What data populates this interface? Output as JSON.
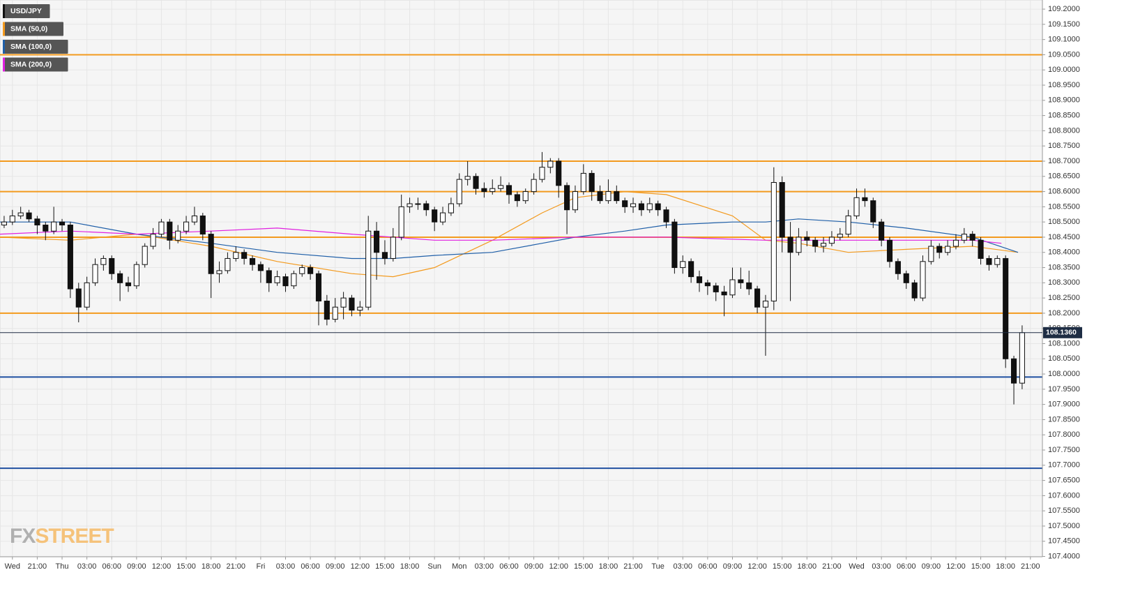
{
  "chart_data": {
    "type": "candlestick",
    "legend": [
      {
        "name": "USD/JPY",
        "color": "#111111"
      },
      {
        "name": "SMA (50,0)",
        "color": "#f39a1e"
      },
      {
        "name": "SMA (100,0)",
        "color": "#1f5fa8"
      },
      {
        "name": "SMA (200,0)",
        "color": "#e020e0"
      }
    ],
    "brand": {
      "part1": "FX",
      "part2": "STREET"
    },
    "xlim": [
      -7.5,
      118.45
    ],
    "ylim": [
      107.399,
      109.23
    ],
    "xticks": [
      {
        "value": -6,
        "label": "Wed"
      },
      {
        "value": -3,
        "label": "21:00"
      },
      {
        "value": 0,
        "label": "Thu"
      },
      {
        "value": 3,
        "label": "03:00"
      },
      {
        "value": 6,
        "label": "06:00"
      },
      {
        "value": 9,
        "label": "09:00"
      },
      {
        "value": 12,
        "label": "12:00"
      },
      {
        "value": 15,
        "label": "15:00"
      },
      {
        "value": 18,
        "label": "18:00"
      },
      {
        "value": 21,
        "label": "21:00"
      },
      {
        "value": 24,
        "label": "Fri"
      },
      {
        "value": 27,
        "label": "03:00"
      },
      {
        "value": 30,
        "label": "06:00"
      },
      {
        "value": 33,
        "label": "09:00"
      },
      {
        "value": 36,
        "label": "12:00"
      },
      {
        "value": 39,
        "label": "15:00"
      },
      {
        "value": 42,
        "label": "18:00"
      },
      {
        "value": 45,
        "label": "Sun"
      },
      {
        "value": 48,
        "label": "Mon"
      },
      {
        "value": 51,
        "label": "03:00"
      },
      {
        "value": 54,
        "label": "06:00"
      },
      {
        "value": 57,
        "label": "09:00"
      },
      {
        "value": 60,
        "label": "12:00"
      },
      {
        "value": 63,
        "label": "15:00"
      },
      {
        "value": 66,
        "label": "18:00"
      },
      {
        "value": 69,
        "label": "21:00"
      },
      {
        "value": 72,
        "label": "Tue"
      },
      {
        "value": 75,
        "label": "03:00"
      },
      {
        "value": 78,
        "label": "06:00"
      },
      {
        "value": 81,
        "label": "09:00"
      },
      {
        "value": 84,
        "label": "12:00"
      },
      {
        "value": 87,
        "label": "15:00"
      },
      {
        "value": 90,
        "label": "18:00"
      },
      {
        "value": 93,
        "label": "21:00"
      },
      {
        "value": 96,
        "label": "Wed"
      },
      {
        "value": 99,
        "label": "03:00"
      },
      {
        "value": 102,
        "label": "06:00"
      },
      {
        "value": 105,
        "label": "09:00"
      },
      {
        "value": 108,
        "label": "12:00"
      },
      {
        "value": 111,
        "label": "15:00"
      },
      {
        "value": 114,
        "label": "18:00"
      },
      {
        "value": 117,
        "label": "21:00"
      }
    ],
    "yticks": [
      {
        "value": 107.4,
        "label": "107.4000"
      },
      {
        "value": 107.45,
        "label": "107.4500"
      },
      {
        "value": 107.5,
        "label": "107.5000"
      },
      {
        "value": 107.55,
        "label": "107.5500"
      },
      {
        "value": 107.6,
        "label": "107.6000"
      },
      {
        "value": 107.65,
        "label": "107.6500"
      },
      {
        "value": 107.7,
        "label": "107.7000"
      },
      {
        "value": 107.75,
        "label": "107.7500"
      },
      {
        "value": 107.8,
        "label": "107.8000"
      },
      {
        "value": 107.85,
        "label": "107.8500"
      },
      {
        "value": 107.9,
        "label": "107.9000"
      },
      {
        "value": 107.95,
        "label": "107.9500"
      },
      {
        "value": 108.0,
        "label": "108.0000"
      },
      {
        "value": 108.05,
        "label": "108.0500"
      },
      {
        "value": 108.1,
        "label": "108.1000"
      },
      {
        "value": 108.15,
        "label": "108.1500"
      },
      {
        "value": 108.2,
        "label": "108.2000"
      },
      {
        "value": 108.25,
        "label": "108.2500"
      },
      {
        "value": 108.3,
        "label": "108.3000"
      },
      {
        "value": 108.35,
        "label": "108.3500"
      },
      {
        "value": 108.4,
        "label": "108.4000"
      },
      {
        "value": 108.45,
        "label": "108.4500"
      },
      {
        "value": 108.5,
        "label": "108.5000"
      },
      {
        "value": 108.55,
        "label": "108.5500"
      },
      {
        "value": 108.6,
        "label": "108.6000"
      },
      {
        "value": 108.65,
        "label": "108.6500"
      },
      {
        "value": 108.7,
        "label": "108.7000"
      },
      {
        "value": 108.75,
        "label": "108.7500"
      },
      {
        "value": 108.8,
        "label": "108.8000"
      },
      {
        "value": 108.85,
        "label": "108.8500"
      },
      {
        "value": 108.9,
        "label": "108.9000"
      },
      {
        "value": 108.95,
        "label": "108.9500"
      },
      {
        "value": 109.0,
        "label": "109.0000"
      },
      {
        "value": 109.05,
        "label": "109.0500"
      },
      {
        "value": 109.1,
        "label": "109.1000"
      },
      {
        "value": 109.15,
        "label": "109.1500"
      },
      {
        "value": 109.2,
        "label": "109.2000"
      }
    ],
    "grid": true,
    "up_color": "#ffffff",
    "down_color": "#111111",
    "levels": [
      {
        "value": 109.05,
        "color": "#f39a1e"
      },
      {
        "value": 108.7,
        "color": "#f39a1e"
      },
      {
        "value": 108.6,
        "color": "#f39a1e"
      },
      {
        "value": 108.45,
        "color": "#f39a1e"
      },
      {
        "value": 108.2,
        "color": "#f39a1e"
      },
      {
        "value": 107.99,
        "color": "#1f4fa0"
      },
      {
        "value": 107.69,
        "color": "#1f4fa0"
      }
    ],
    "last_price": {
      "value": 108.136,
      "label": "108.1360",
      "color": "#1e2d44"
    },
    "x": [
      -7,
      -6,
      -5,
      -4,
      -3,
      -2,
      -1,
      0,
      1,
      2,
      3,
      4,
      5,
      6,
      7,
      8,
      9,
      10,
      11,
      12,
      13,
      14,
      15,
      16,
      17,
      18,
      19,
      20,
      21,
      22,
      23,
      24,
      25,
      26,
      27,
      28,
      29,
      30,
      31,
      32,
      33,
      34,
      35,
      36,
      37,
      38,
      39,
      40,
      41,
      42,
      43,
      44,
      45,
      46,
      47,
      48,
      49,
      50,
      51,
      52,
      53,
      54,
      55,
      56,
      57,
      58,
      59,
      60,
      61,
      62,
      63,
      64,
      65,
      66,
      67,
      68,
      69,
      70,
      71,
      72,
      73,
      74,
      75,
      76,
      77,
      78,
      79,
      80,
      81,
      82,
      83,
      84,
      85,
      86,
      87,
      88,
      89,
      90,
      91,
      92,
      93,
      94,
      95,
      96,
      97,
      98,
      99,
      100,
      101,
      102,
      103,
      104,
      105,
      106,
      107,
      108,
      109,
      110,
      111,
      112,
      113,
      114,
      115,
      116
    ],
    "open": [
      108.49,
      108.5,
      108.52,
      108.53,
      108.51,
      108.49,
      108.47,
      108.5,
      108.49,
      108.28,
      108.22,
      108.3,
      108.36,
      108.38,
      108.33,
      108.3,
      108.29,
      108.36,
      108.42,
      108.46,
      108.5,
      108.44,
      108.47,
      108.5,
      108.52,
      108.46,
      108.33,
      108.34,
      108.38,
      108.4,
      108.38,
      108.36,
      108.34,
      108.3,
      108.32,
      108.29,
      108.33,
      108.35,
      108.33,
      108.24,
      108.18,
      108.22,
      108.25,
      108.21,
      108.22,
      108.47,
      108.4,
      108.38,
      108.45,
      108.55,
      108.56,
      108.56,
      108.54,
      108.5,
      108.53,
      108.56,
      108.64,
      108.65,
      108.61,
      108.6,
      108.61,
      108.62,
      108.59,
      108.57,
      108.6,
      108.64,
      108.68,
      108.7,
      108.62,
      108.54,
      108.6,
      108.66,
      108.6,
      108.57,
      108.6,
      108.57,
      108.55,
      108.56,
      108.54,
      108.56,
      108.54,
      108.5,
      108.35,
      108.37,
      108.32,
      108.3,
      108.29,
      108.27,
      108.26,
      108.31,
      108.3,
      108.28,
      108.22,
      108.24,
      108.63,
      108.45,
      108.4,
      108.45,
      108.44,
      108.42,
      108.43,
      108.45,
      108.46,
      108.52,
      108.58,
      108.57,
      108.5,
      108.44,
      108.37,
      108.33,
      108.3,
      108.25,
      108.37,
      108.42,
      108.4,
      108.42,
      108.44,
      108.46,
      108.44,
      108.38,
      108.36,
      108.38,
      108.05,
      107.97
    ],
    "high": [
      108.52,
      108.54,
      108.55,
      108.54,
      108.52,
      108.5,
      108.55,
      108.51,
      108.5,
      108.3,
      108.32,
      108.38,
      108.39,
      108.39,
      108.34,
      108.32,
      108.37,
      108.43,
      108.48,
      108.51,
      108.51,
      108.49,
      108.52,
      108.55,
      108.53,
      108.47,
      108.37,
      108.4,
      108.42,
      108.41,
      108.39,
      108.37,
      108.35,
      108.34,
      108.33,
      108.34,
      108.36,
      108.36,
      108.34,
      108.26,
      108.25,
      108.27,
      108.26,
      108.24,
      108.52,
      108.5,
      108.44,
      108.48,
      108.59,
      108.58,
      108.58,
      108.57,
      108.55,
      108.55,
      108.58,
      108.66,
      108.7,
      108.66,
      108.63,
      108.64,
      108.65,
      108.63,
      108.6,
      108.61,
      108.66,
      108.73,
      108.71,
      108.71,
      108.63,
      108.62,
      108.69,
      108.67,
      108.62,
      108.64,
      108.62,
      108.58,
      108.58,
      108.57,
      108.58,
      108.57,
      108.55,
      108.51,
      108.39,
      108.38,
      108.34,
      108.31,
      108.3,
      108.29,
      108.35,
      108.35,
      108.34,
      108.29,
      108.26,
      108.68,
      108.65,
      108.5,
      108.48,
      108.47,
      108.45,
      108.45,
      108.47,
      108.48,
      108.54,
      108.61,
      108.61,
      108.58,
      108.51,
      108.45,
      108.38,
      108.34,
      108.31,
      108.39,
      108.44,
      108.43,
      108.44,
      108.46,
      108.48,
      108.47,
      108.45,
      108.39,
      108.39,
      108.39,
      108.06,
      108.16
    ],
    "low": [
      108.48,
      108.49,
      108.51,
      108.5,
      108.46,
      108.44,
      108.46,
      108.47,
      108.25,
      108.17,
      108.21,
      108.29,
      108.34,
      108.31,
      108.24,
      108.27,
      108.28,
      108.35,
      108.41,
      108.45,
      108.41,
      108.43,
      108.46,
      108.49,
      108.44,
      108.25,
      108.3,
      108.33,
      108.37,
      108.36,
      108.34,
      108.3,
      108.27,
      108.29,
      108.27,
      108.28,
      108.32,
      108.31,
      108.16,
      108.16,
      108.17,
      108.18,
      108.19,
      108.19,
      108.21,
      108.31,
      108.36,
      108.37,
      108.44,
      108.53,
      108.54,
      108.52,
      108.47,
      108.49,
      108.52,
      108.55,
      108.62,
      108.59,
      108.58,
      108.59,
      108.6,
      108.56,
      108.55,
      108.56,
      108.59,
      108.63,
      108.66,
      108.58,
      108.46,
      108.53,
      108.59,
      108.57,
      108.56,
      108.56,
      108.56,
      108.53,
      108.53,
      108.52,
      108.53,
      108.52,
      108.48,
      108.33,
      108.33,
      108.3,
      108.27,
      108.26,
      108.24,
      108.19,
      108.25,
      108.28,
      108.26,
      108.2,
      108.06,
      108.21,
      108.4,
      108.24,
      108.39,
      108.42,
      108.4,
      108.4,
      108.42,
      108.44,
      108.45,
      108.51,
      108.55,
      108.48,
      108.42,
      108.35,
      108.31,
      108.28,
      108.24,
      108.24,
      108.36,
      108.38,
      108.39,
      108.41,
      108.43,
      108.42,
      108.36,
      108.34,
      108.35,
      108.02,
      107.9,
      107.95
    ],
    "close": [
      108.5,
      108.52,
      108.53,
      108.51,
      108.49,
      108.47,
      108.5,
      108.49,
      108.28,
      108.22,
      108.3,
      108.36,
      108.38,
      108.33,
      108.3,
      108.29,
      108.36,
      108.42,
      108.46,
      108.5,
      108.44,
      108.47,
      108.5,
      108.52,
      108.46,
      108.33,
      108.34,
      108.38,
      108.4,
      108.38,
      108.36,
      108.34,
      108.3,
      108.32,
      108.29,
      108.33,
      108.35,
      108.33,
      108.24,
      108.18,
      108.22,
      108.25,
      108.21,
      108.22,
      108.47,
      108.4,
      108.38,
      108.45,
      108.55,
      108.56,
      108.56,
      108.54,
      108.5,
      108.53,
      108.56,
      108.64,
      108.65,
      108.61,
      108.6,
      108.61,
      108.62,
      108.59,
      108.57,
      108.6,
      108.64,
      108.68,
      108.7,
      108.62,
      108.54,
      108.6,
      108.66,
      108.6,
      108.57,
      108.6,
      108.57,
      108.55,
      108.56,
      108.54,
      108.56,
      108.54,
      108.5,
      108.35,
      108.37,
      108.32,
      108.3,
      108.29,
      108.27,
      108.26,
      108.31,
      108.3,
      108.28,
      108.22,
      108.24,
      108.63,
      108.45,
      108.4,
      108.45,
      108.44,
      108.42,
      108.43,
      108.45,
      108.46,
      108.52,
      108.58,
      108.57,
      108.5,
      108.44,
      108.37,
      108.33,
      108.3,
      108.25,
      108.37,
      108.42,
      108.4,
      108.42,
      108.44,
      108.46,
      108.44,
      108.38,
      108.36,
      108.38,
      108.05,
      107.97,
      108.136
    ],
    "overlays": [
      {
        "name": "SMA (50,0)",
        "color": "#f39a1e",
        "x": [
          -7.5,
          1,
          9,
          18,
          26,
          35,
          40,
          45,
          52,
          58,
          62,
          68,
          73,
          81,
          85,
          89,
          95,
          102,
          110,
          115.5
        ],
        "values": [
          108.45,
          108.44,
          108.46,
          108.42,
          108.37,
          108.33,
          108.32,
          108.35,
          108.44,
          108.53,
          108.58,
          108.6,
          108.59,
          108.52,
          108.44,
          108.43,
          108.4,
          108.41,
          108.42,
          108.4
        ]
      },
      {
        "name": "SMA (100,0)",
        "color": "#1f5fa8",
        "x": [
          -7.5,
          1,
          9,
          18,
          26,
          35,
          40,
          45,
          52,
          58,
          62,
          68,
          73,
          81,
          85,
          89,
          95,
          102,
          110,
          115.5
        ],
        "values": [
          108.5,
          108.5,
          108.46,
          108.43,
          108.4,
          108.38,
          108.38,
          108.39,
          108.4,
          108.43,
          108.45,
          108.47,
          108.49,
          108.5,
          108.5,
          108.51,
          108.5,
          108.48,
          108.45,
          108.4
        ]
      },
      {
        "name": "SMA (200,0)",
        "color": "#e020e0",
        "x": [
          -7.5,
          1,
          9,
          18,
          26,
          35,
          45,
          52,
          62,
          73,
          85,
          95,
          102,
          110,
          113.5
        ],
        "values": [
          108.46,
          108.47,
          108.46,
          108.47,
          108.48,
          108.46,
          108.44,
          108.44,
          108.45,
          108.45,
          108.44,
          108.44,
          108.44,
          108.44,
          108.43
        ]
      }
    ]
  }
}
